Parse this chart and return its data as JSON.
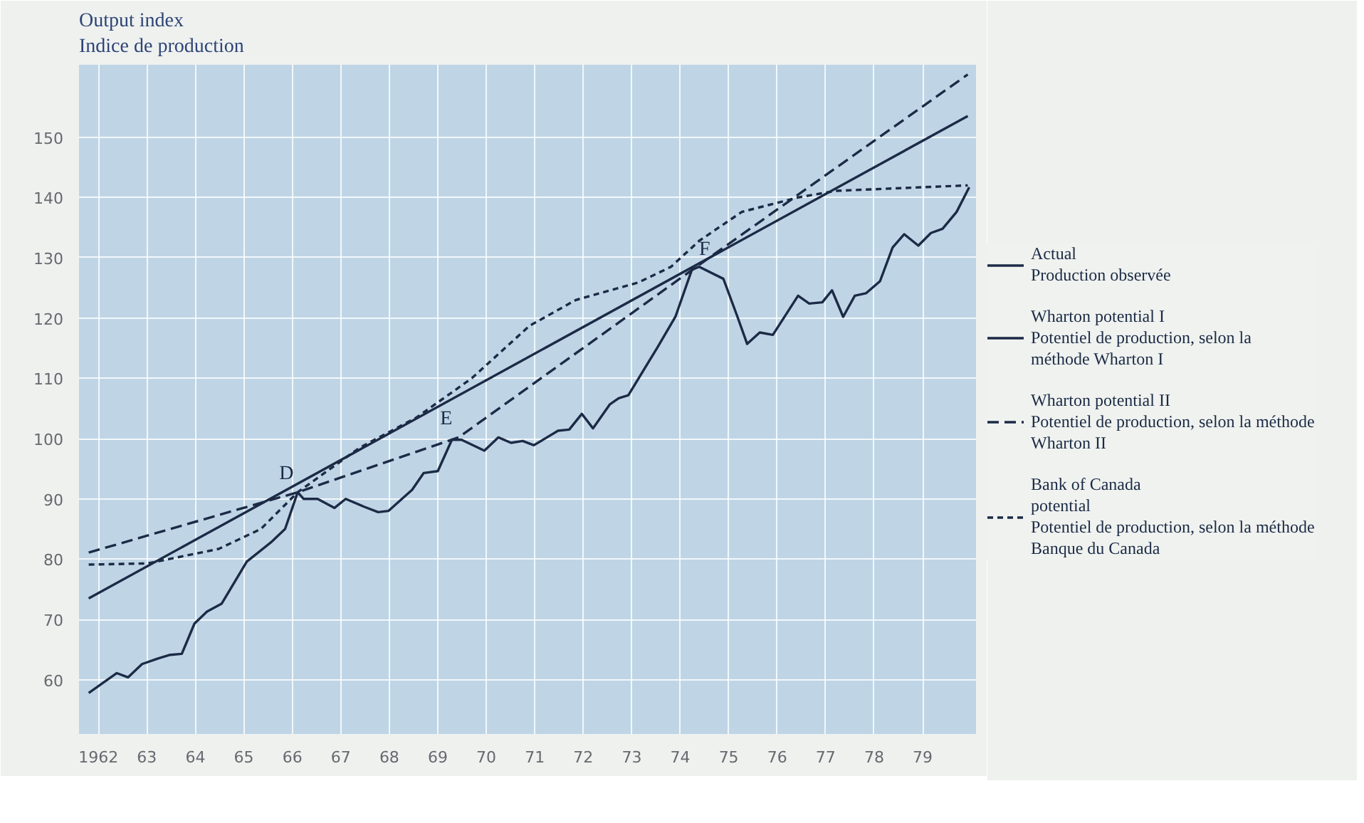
{
  "chart_data": {
    "type": "line",
    "ylabel": "Output index\nIndice de production",
    "xlim": [
      1961.6,
      1980.1
    ],
    "ylim": [
      51,
      162
    ],
    "xticks": [
      {
        "value": 1962,
        "label": "1962"
      },
      {
        "value": 1963,
        "label": "63"
      },
      {
        "value": 1964,
        "label": "64"
      },
      {
        "value": 1965,
        "label": "65"
      },
      {
        "value": 1966,
        "label": "66"
      },
      {
        "value": 1967,
        "label": "67"
      },
      {
        "value": 1968,
        "label": "68"
      },
      {
        "value": 1969,
        "label": "69"
      },
      {
        "value": 1970,
        "label": "70"
      },
      {
        "value": 1971,
        "label": "71"
      },
      {
        "value": 1972,
        "label": "72"
      },
      {
        "value": 1973,
        "label": "73"
      },
      {
        "value": 1974,
        "label": "74"
      },
      {
        "value": 1975,
        "label": "75"
      },
      {
        "value": 1976,
        "label": "76"
      },
      {
        "value": 1977,
        "label": "77"
      },
      {
        "value": 1978,
        "label": "78"
      },
      {
        "value": 1979,
        "label": "79"
      }
    ],
    "yticks": [
      60,
      70,
      80,
      90,
      100,
      110,
      120,
      130,
      140,
      150
    ],
    "grid": true,
    "legend": "right",
    "marker": "none",
    "series": [
      {
        "name": "Actual\nProduction observée",
        "color": "#1c2a45",
        "line_style": "solid",
        "x": [
          1961.8,
          1962.38,
          1962.61,
          1962.9,
          1963.22,
          1963.46,
          1963.72,
          1963.98,
          1964.24,
          1964.54,
          1965.06,
          1965.56,
          1965.85,
          1966.11,
          1966.23,
          1966.52,
          1966.87,
          1967.1,
          1967.48,
          1967.77,
          1967.98,
          1968.47,
          1968.71,
          1969.0,
          1969.29,
          1969.49,
          1969.96,
          1970.25,
          1970.51,
          1970.75,
          1970.98,
          1971.48,
          1971.71,
          1971.97,
          1972.2,
          1972.55,
          1972.73,
          1972.93,
          1973.52,
          1973.9,
          1974.24,
          1974.39,
          1974.89,
          1975.18,
          1975.38,
          1975.64,
          1975.91,
          1976.43,
          1976.66,
          1976.93,
          1977.13,
          1977.36,
          1977.6,
          1977.83,
          1978.12,
          1978.38,
          1978.62,
          1978.91,
          1979.17,
          1979.41,
          1979.7,
          1979.96
        ],
        "values": [
          57.8,
          61.1,
          60.4,
          62.6,
          63.5,
          64.1,
          64.3,
          69.3,
          71.3,
          72.6,
          79.6,
          82.8,
          85.0,
          91.1,
          90.0,
          90.0,
          88.5,
          90.0,
          88.7,
          87.8,
          88.0,
          91.5,
          94.3,
          94.6,
          99.8,
          99.8,
          98.0,
          100.2,
          99.3,
          99.6,
          98.9,
          101.3,
          101.5,
          104.1,
          101.7,
          105.7,
          106.7,
          107.2,
          115.0,
          120.2,
          128.0,
          128.5,
          126.5,
          120.2,
          115.7,
          117.6,
          117.2,
          123.7,
          122.4,
          122.6,
          124.6,
          120.2,
          123.7,
          124.1,
          126.1,
          131.7,
          133.9,
          132.0,
          134.1,
          134.8,
          137.6,
          141.7
        ]
      },
      {
        "name": "Wharton potential I\nPotentiel de production, selon la\nméthode Wharton I",
        "color": "#1c2a45",
        "line_style": "solid",
        "x": [
          1961.8,
          1979.93
        ],
        "values": [
          73.5,
          153.5
        ]
      },
      {
        "name": "Wharton potential II\nPotentiel de production, selon la méthode\nWharton II",
        "color": "#1c2a45",
        "line_style": "dashed",
        "x": [
          1961.8,
          1966.11,
          1969.43,
          1974.3,
          1979.93
        ],
        "values": [
          81.1,
          91.1,
          100.2,
          128.3,
          160.4
        ]
      },
      {
        "name": "Bank of Canada\npotential\nPotentiel de production, selon la méthode\nBanque du Canada",
        "color": "#1c2a45",
        "line_style": "dotted",
        "x": [
          1961.8,
          1963.02,
          1964.48,
          1965.35,
          1966.11,
          1967.39,
          1968.56,
          1969.7,
          1970.89,
          1971.85,
          1973.14,
          1973.81,
          1974.39,
          1975.27,
          1976.43,
          1977.22,
          1979.93
        ],
        "values": [
          79.1,
          79.3,
          81.7,
          85.0,
          91.1,
          98.5,
          103.5,
          110.0,
          118.7,
          123.0,
          125.9,
          128.5,
          132.8,
          137.6,
          140.0,
          141.1,
          142.0
        ]
      }
    ],
    "annotations": [
      {
        "text": "D",
        "x": 1966.11,
        "y": 91.1
      },
      {
        "text": "E",
        "x": 1969.43,
        "y": 100.2
      },
      {
        "text": "F",
        "x": 1974.3,
        "y": 128.3
      }
    ]
  }
}
